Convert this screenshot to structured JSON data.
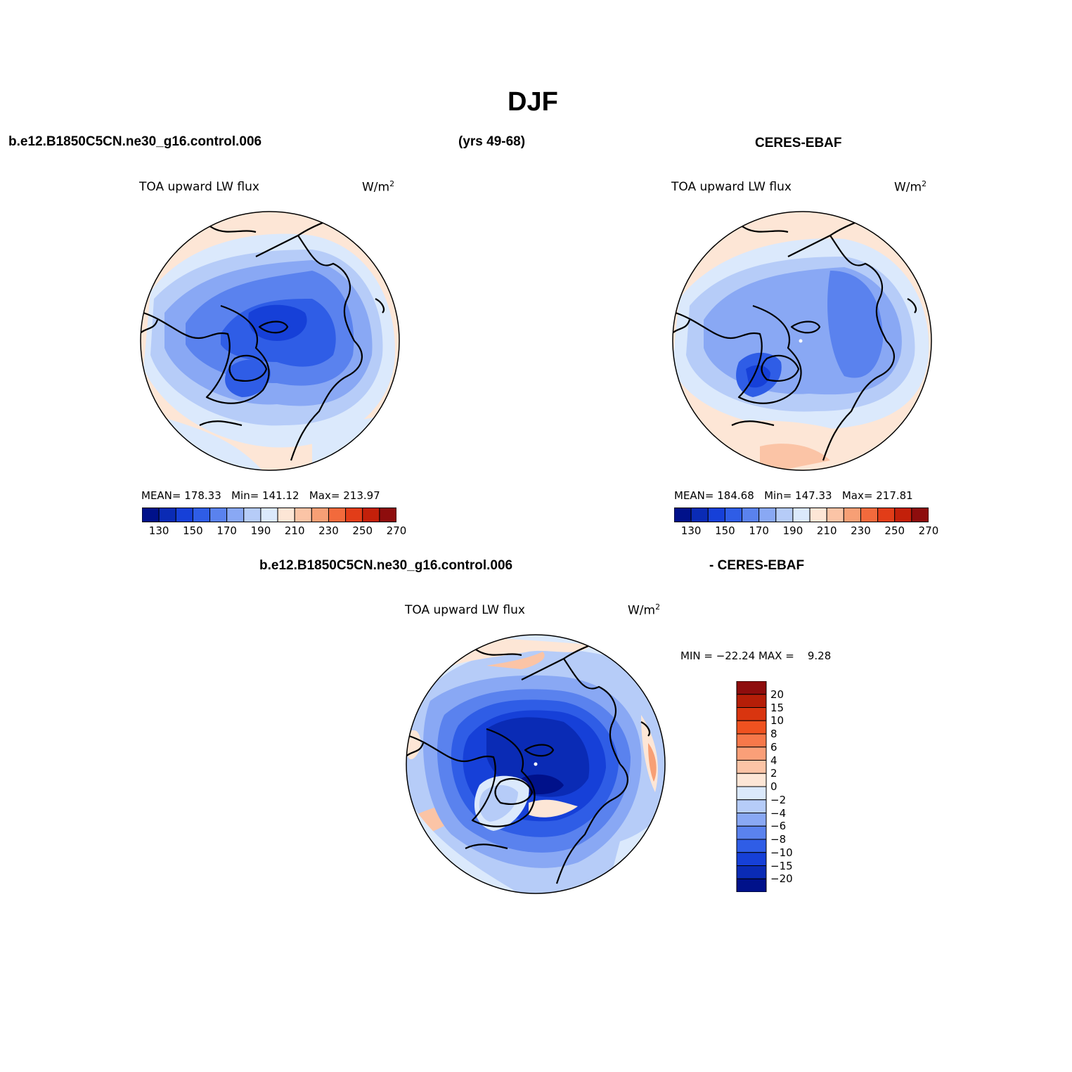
{
  "figure": {
    "title": "DJF",
    "left_header": "b.e12.B1850C5CN.ne30_g16.control.006",
    "center_header": "(yrs 49-68)",
    "right_header": "CERES-EBAF",
    "diff_header_left": "b.e12.B1850C5CN.ne30_g16.control.006",
    "diff_header_right": "- CERES-EBAF"
  },
  "panels": [
    {
      "id": "model",
      "variable": "TOA upward LW flux",
      "units": "W/m",
      "units_exp": "2",
      "stats": {
        "mean_label": "MEAN=",
        "mean": "178.33",
        "min_label": "Min=",
        "min": "141.12",
        "max_label": "Max=",
        "max": "213.97"
      }
    },
    {
      "id": "obs",
      "variable": "TOA upward LW flux",
      "units": "W/m",
      "units_exp": "2",
      "stats": {
        "mean_label": "MEAN=",
        "mean": "184.68",
        "min_label": "Min=",
        "min": "147.33",
        "max_label": "Max=",
        "max": "217.81"
      }
    },
    {
      "id": "diff",
      "variable": "TOA upward LW flux",
      "units": "W/m",
      "units_exp": "2",
      "minmax": "MIN = −22.24 MAX =    9.28"
    }
  ],
  "colorbar_horizontal": {
    "colors": [
      "#00118a",
      "#0a2bb5",
      "#1640d8",
      "#2f5de6",
      "#5a82ee",
      "#89a8f4",
      "#b6ccf8",
      "#dbe9fc",
      "#fde6d6",
      "#fbc4a6",
      "#f79f75",
      "#f26a3c",
      "#e23d18",
      "#c3200a",
      "#8e0d0d"
    ],
    "tick_labels": [
      "130",
      "150",
      "170",
      "190",
      "210",
      "230",
      "250",
      "270"
    ]
  },
  "colorbar_vertical": {
    "colors": [
      "#8e0d0d",
      "#b51e08",
      "#d9350f",
      "#ef5220",
      "#f6784a",
      "#fa9f78",
      "#fcc4a6",
      "#fde6d6",
      "#dbe9fc",
      "#b6ccf8",
      "#89a8f4",
      "#5a82ee",
      "#2f5de6",
      "#1640d8",
      "#0a2bb5",
      "#00118a"
    ],
    "tick_labels": [
      "20",
      "15",
      "10",
      "8",
      "6",
      "4",
      "2",
      "0",
      "−2",
      "−4",
      "−6",
      "−8",
      "−10",
      "−15",
      "−20"
    ]
  }
}
